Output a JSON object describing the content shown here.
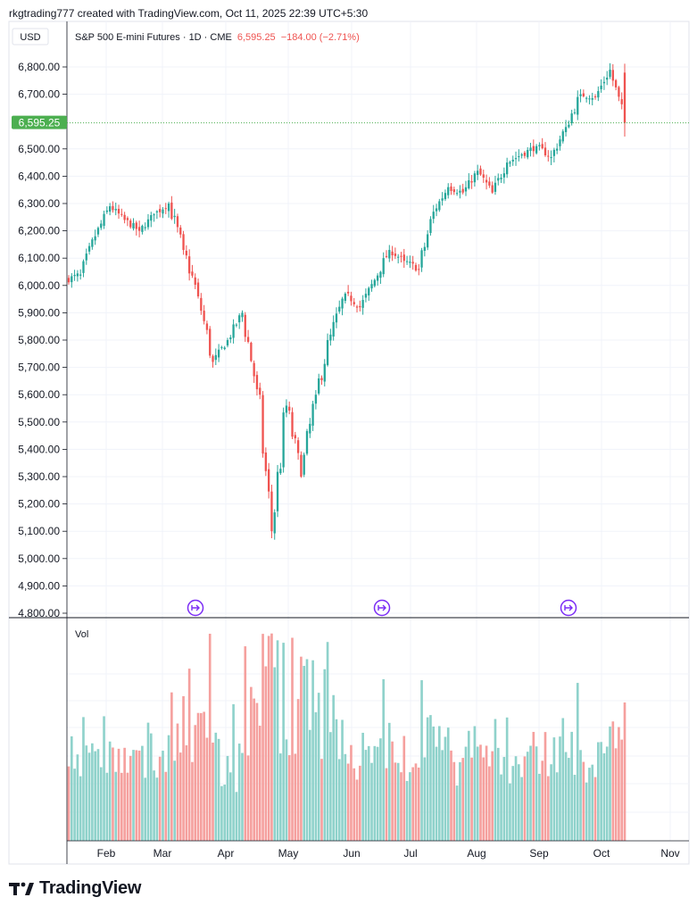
{
  "header": {
    "attribution": "rkgtrading777 created with TradingView.com, Oct 11, 2025 22:39 UTC+5:30"
  },
  "legend": {
    "currency": "USD",
    "symbol": "S&P 500 E-mini Futures · 1D · CME",
    "last_price": "6,595.25",
    "change": "−184.00 (−2.71%)",
    "volume_label": "Vol"
  },
  "price_tag": "6,595.25",
  "brand": "TradingView",
  "colors": {
    "up": "#26a69a",
    "down": "#ef5350",
    "vol_up": "#8fd2cb",
    "vol_down": "#f5a09e",
    "price_line": "#4caf50",
    "event_marker": "#7b2cf5",
    "grid": "#f0f3fa"
  },
  "chart_data": {
    "type": "candlestick",
    "title": "S&P 500 E-mini Futures · 1D · CME",
    "ylim": [
      4800,
      6850
    ],
    "y_ticks": [
      "4,800.00",
      "4,900.00",
      "5,000.00",
      "5,100.00",
      "5,200.00",
      "5,300.00",
      "5,400.00",
      "5,500.00",
      "5,600.00",
      "5,700.00",
      "5,800.00",
      "5,900.00",
      "6,000.00",
      "6,100.00",
      "6,200.00",
      "6,300.00",
      "6,400.00",
      "6,500.00",
      "6,700.00",
      "6,800.00"
    ],
    "x_ticks": [
      "Feb",
      "Mar",
      "Apr",
      "May",
      "Jun",
      "Jul",
      "Aug",
      "Sep",
      "Oct",
      "Nov"
    ],
    "price_line": 6595.25,
    "event_markers": [
      "Apr",
      "Jun",
      "Sep"
    ],
    "weekly_path": [
      {
        "month": "Jan",
        "close": 6040
      },
      {
        "month": "Jan",
        "close": 6180
      },
      {
        "month": "Jan",
        "close": 6290
      },
      {
        "month": "Feb",
        "close": 6240
      },
      {
        "month": "Feb",
        "close": 6200
      },
      {
        "month": "Feb",
        "close": 6260
      },
      {
        "month": "Feb",
        "close": 6300
      },
      {
        "month": "Mar",
        "close": 6130
      },
      {
        "month": "Mar",
        "close": 5960
      },
      {
        "month": "Mar",
        "close": 5720
      },
      {
        "month": "Mar",
        "close": 5800
      },
      {
        "month": "Apr",
        "close": 5900
      },
      {
        "month": "Apr",
        "close": 5620
      },
      {
        "month": "Apr",
        "close": 5100
      },
      {
        "month": "Apr",
        "close": 5560
      },
      {
        "month": "Apr",
        "close": 5300
      },
      {
        "month": "May",
        "close": 5600
      },
      {
        "month": "May",
        "close": 5820
      },
      {
        "month": "May",
        "close": 5970
      },
      {
        "month": "May",
        "close": 5920
      },
      {
        "month": "Jun",
        "close": 6020
      },
      {
        "month": "Jun",
        "close": 6130
      },
      {
        "month": "Jun",
        "close": 6090
      },
      {
        "month": "Jun",
        "close": 6060
      },
      {
        "month": "Jul",
        "close": 6270
      },
      {
        "month": "Jul",
        "close": 6360
      },
      {
        "month": "Jul",
        "close": 6340
      },
      {
        "month": "Jul",
        "close": 6420
      },
      {
        "month": "Aug",
        "close": 6340
      },
      {
        "month": "Aug",
        "close": 6450
      },
      {
        "month": "Aug",
        "close": 6480
      },
      {
        "month": "Aug",
        "close": 6510
      },
      {
        "month": "Sep",
        "close": 6470
      },
      {
        "month": "Sep",
        "close": 6580
      },
      {
        "month": "Sep",
        "close": 6700
      },
      {
        "month": "Sep",
        "close": 6690
      },
      {
        "month": "Oct",
        "close": 6790
      },
      {
        "month": "Oct",
        "close": 6595.25
      }
    ]
  }
}
